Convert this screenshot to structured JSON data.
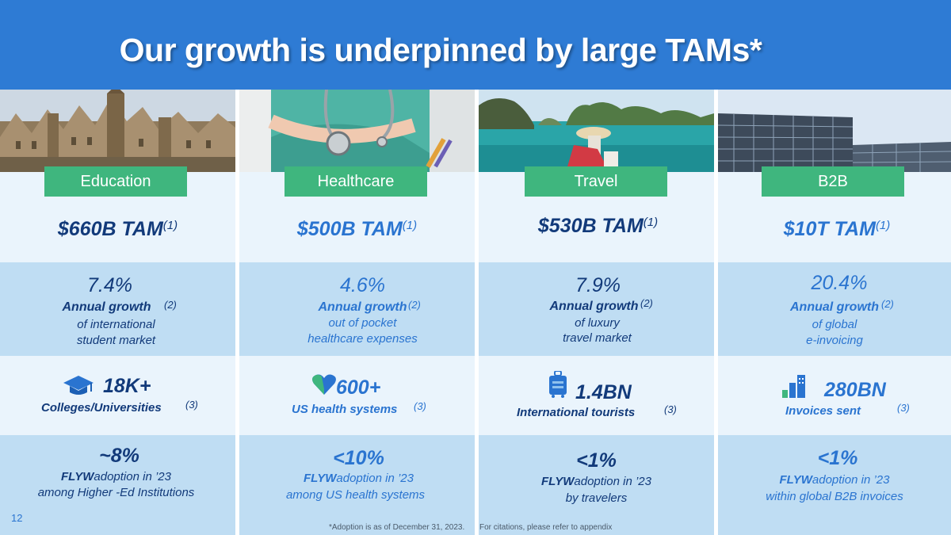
{
  "title": "Our growth is underpinned by large TAMs*",
  "colors": {
    "header": "#2e7bd4",
    "tab": "#3fb67e",
    "dark_text": "#123a7a",
    "blue_text": "#2a74d0"
  },
  "columns": [
    {
      "name": "Education",
      "tam": "$660B TAM",
      "tam_ref": "(1)",
      "growth": "7.4%",
      "growth_label": "Annual growth",
      "growth_ref": "(2)",
      "growth_desc": [
        "of international",
        "student market"
      ],
      "stat_icon": "graduation-cap-icon",
      "stat": "18K+",
      "stat_label": "Colleges/Universities",
      "stat_ref": "(3)",
      "adoption": "~8%",
      "adoption_brand": "FLYW",
      "adoption_text": "adoption in ’23",
      "adoption_desc": "among Higher -Ed Institutions"
    },
    {
      "name": "Healthcare",
      "tam": "$500B TAM",
      "tam_ref": "(1)",
      "growth": "4.6%",
      "growth_label": "Annual growth",
      "growth_ref": "(2)",
      "growth_desc": [
        "out of pocket",
        "healthcare expenses"
      ],
      "stat_icon": "heart-icon",
      "stat": "600+",
      "stat_label": "US health systems",
      "stat_ref": "(3)",
      "adoption": "<10%",
      "adoption_brand": "FLYW",
      "adoption_text": "adoption in ’23",
      "adoption_desc": "among US health systems"
    },
    {
      "name": "Travel",
      "tam": "$530B TAM",
      "tam_ref": "(1)",
      "growth": "7.9%",
      "growth_label": "Annual growth",
      "growth_ref": "(2)",
      "growth_desc": [
        "of luxury",
        "travel market"
      ],
      "stat_icon": "luggage-icon",
      "stat": "1.4BN",
      "stat_label": "International tourists",
      "stat_ref": "(3)",
      "adoption": "<1%",
      "adoption_brand": "FLYW",
      "adoption_text": "adoption in ’23",
      "adoption_desc": "by travelers"
    },
    {
      "name": "B2B",
      "tam": "$10T TAM",
      "tam_ref": "(1)",
      "growth": "20.4%",
      "growth_label": "Annual growth",
      "growth_ref": "(2)",
      "growth_desc": [
        "of global",
        "e-invoicing"
      ],
      "stat_icon": "invoice-bars-icon",
      "stat": "280BN",
      "stat_label": "Invoices sent",
      "stat_ref": "(3)",
      "adoption": "<1%",
      "adoption_brand": "FLYW",
      "adoption_text": "adoption in ’23",
      "adoption_desc": "within global B2B invoices"
    }
  ],
  "page_number": "12",
  "footnote_left": "*Adoption is as of December 31, 2023.",
  "footnote_right": "For citations, please refer to appendix"
}
